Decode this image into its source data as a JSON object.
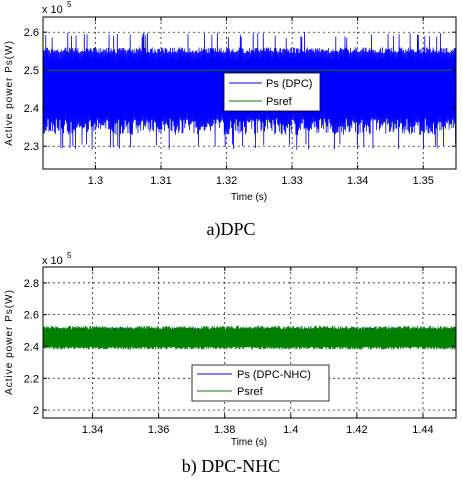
{
  "chart_data": [
    {
      "type": "line",
      "caption": "a)DPC",
      "xlabel": "Time (s)",
      "ylabel": "Active power Ps(W)",
      "y_multiplier": "x 10",
      "y_exponent": "5",
      "xlim": [
        1.292,
        1.355
      ],
      "ylim": [
        2.24,
        2.64
      ],
      "xticks": [
        1.3,
        1.31,
        1.32,
        1.33,
        1.34,
        1.35
      ],
      "xtick_labels": [
        "1.3",
        "1.31",
        "1.32",
        "1.33",
        "1.34",
        "1.35"
      ],
      "yticks": [
        2.3,
        2.4,
        2.5,
        2.6
      ],
      "ytick_labels": [
        "2.3",
        "2.4",
        "2.5",
        "2.6"
      ],
      "grid": true,
      "legend_position": "center-right",
      "series": [
        {
          "name": "Ps (DPC)",
          "color": "#0000ff",
          "mean": 2.5,
          "band": [
            2.33,
            2.56
          ],
          "peaks": [
            2.29,
            2.6
          ],
          "style": "oscillating"
        },
        {
          "name": "Psref",
          "color": "#008000",
          "value": 2.5,
          "style": "constant"
        }
      ]
    },
    {
      "type": "line",
      "caption": "b) DPC-NHC",
      "xlabel": "Time (s)",
      "ylabel": "Active power Ps(W)",
      "y_multiplier": "x 10",
      "y_exponent": "5",
      "xlim": [
        1.325,
        1.45
      ],
      "ylim": [
        1.95,
        2.9
      ],
      "xticks": [
        1.34,
        1.36,
        1.38,
        1.4,
        1.42,
        1.44
      ],
      "xtick_labels": [
        "1.34",
        "1.36",
        "1.38",
        "1.4",
        "1.42",
        "1.44"
      ],
      "yticks": [
        2,
        2.2,
        2.4,
        2.6,
        2.8
      ],
      "ytick_labels": [
        "2",
        "2.2",
        "2.4",
        "2.6",
        "2.8"
      ],
      "grid": true,
      "legend_position": "bottom-center",
      "series": [
        {
          "name": "Ps (DPC-NHC)",
          "color": "#0000ff",
          "mean": 2.45,
          "band": [
            2.4,
            2.52
          ],
          "style": "oscillating"
        },
        {
          "name": "Psref",
          "color": "#008000",
          "mean": 2.45,
          "band": [
            2.38,
            2.53
          ],
          "style": "oscillating"
        }
      ]
    }
  ]
}
